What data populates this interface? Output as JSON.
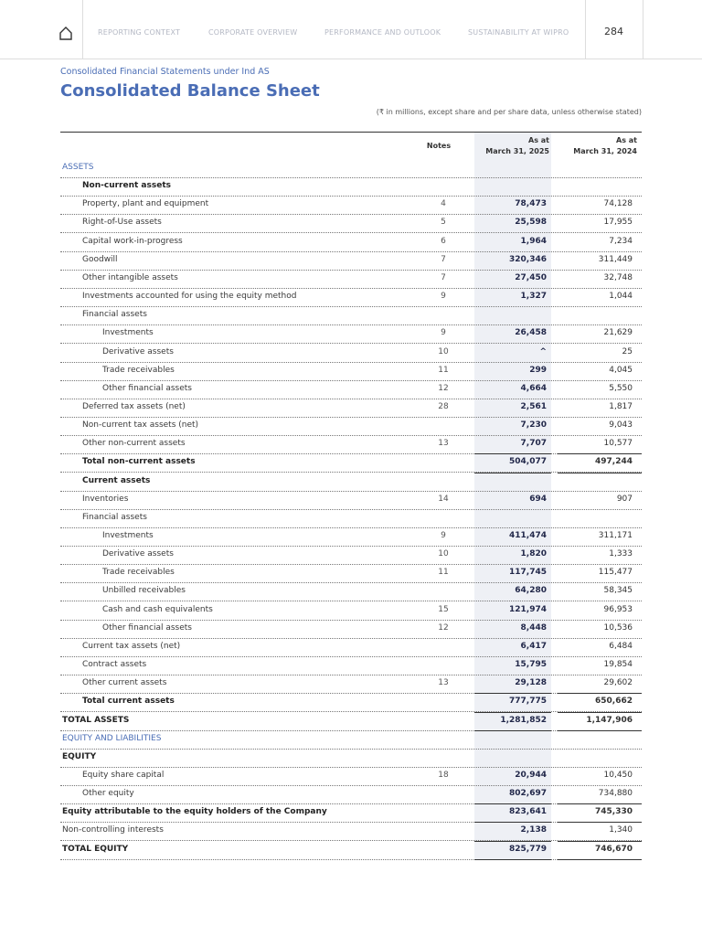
{
  "header": {
    "nav": [
      "REPORTING CONTEXT",
      "CORPORATE OVERVIEW",
      "PERFORMANCE AND OUTLOOK",
      "SUSTAINABILITY AT WIPRO"
    ],
    "page_number": "284"
  },
  "subtitle": "Consolidated Financial Statements under Ind AS",
  "title": "Consolidated Balance Sheet",
  "note": "(₹ in millions, except share and per share data, unless otherwise stated)",
  "table": {
    "columns": [
      "Notes",
      "As at\nMarch 31, 2025",
      "As at\nMarch 31, 2024"
    ],
    "rows": [
      [
        "ASSETS",
        null,
        null,
        null
      ],
      [
        "Non-current assets",
        null,
        null,
        null
      ],
      [
        "Property, plant and equipment",
        "4",
        "78,473",
        "74,128"
      ],
      [
        "Right-of-Use assets",
        "5",
        "25,598",
        "17,955"
      ],
      [
        "Capital work-in-progress",
        "6",
        "1,964",
        "7,234"
      ],
      [
        "Goodwill",
        "7",
        "320,346",
        "311,449"
      ],
      [
        "Other intangible assets",
        "7",
        "27,450",
        "32,748"
      ],
      [
        "Investments accounted for using the equity method",
        "9",
        "1,327",
        "1,044"
      ],
      [
        "Financial assets",
        null,
        null,
        null
      ],
      [
        "Investments",
        "9",
        "26,458",
        "21,629"
      ],
      [
        "Derivative assets",
        "10",
        "^",
        "25"
      ],
      [
        "Trade receivables",
        "11",
        "299",
        "4,045"
      ],
      [
        "Other financial assets",
        "12",
        "4,664",
        "5,550"
      ],
      [
        "Deferred tax assets (net)",
        "28",
        "2,561",
        "1,817"
      ],
      [
        "Non-current tax assets (net)",
        null,
        "7,230",
        "9,043"
      ],
      [
        "Other non-current assets",
        "13",
        "7,707",
        "10,577"
      ],
      [
        "Total non-current assets",
        null,
        "504,077",
        "497,244"
      ],
      [
        "Current assets",
        null,
        null,
        null
      ],
      [
        "Inventories",
        "14",
        "694",
        "907"
      ],
      [
        "Financial assets",
        null,
        null,
        null
      ],
      [
        "Investments",
        "9",
        "411,474",
        "311,171"
      ],
      [
        "Derivative assets",
        "10",
        "1,820",
        "1,333"
      ],
      [
        "Trade receivables",
        "11",
        "117,745",
        "115,477"
      ],
      [
        "Unbilled receivables",
        null,
        "64,280",
        "58,345"
      ],
      [
        "Cash and cash equivalents",
        "15",
        "121,974",
        "96,953"
      ],
      [
        "Other financial assets",
        "12",
        "8,448",
        "10,536"
      ],
      [
        "Current tax assets (net)",
        null,
        "6,417",
        "6,484"
      ],
      [
        "Contract assets",
        null,
        "15,795",
        "19,854"
      ],
      [
        "Other current assets",
        "13",
        "29,128",
        "29,602"
      ],
      [
        "Total current assets",
        null,
        "777,775",
        "650,662"
      ],
      [
        "TOTAL ASSETS",
        null,
        "1,281,852",
        "1,147,906"
      ],
      [
        "EQUITY AND LIABILITIES",
        null,
        null,
        null
      ],
      [
        "EQUITY",
        null,
        null,
        null
      ],
      [
        "Equity share capital",
        "18",
        "20,944",
        "10,450"
      ],
      [
        "Other equity",
        null,
        "802,697",
        "734,880"
      ],
      [
        "Equity attributable to the equity holders of the Company",
        null,
        "823,641",
        "745,330"
      ],
      [
        "Non-controlling interests",
        null,
        "2,138",
        "1,340"
      ],
      [
        "TOTAL EQUITY",
        null,
        "825,779",
        "746,670"
      ]
    ]
  }
}
